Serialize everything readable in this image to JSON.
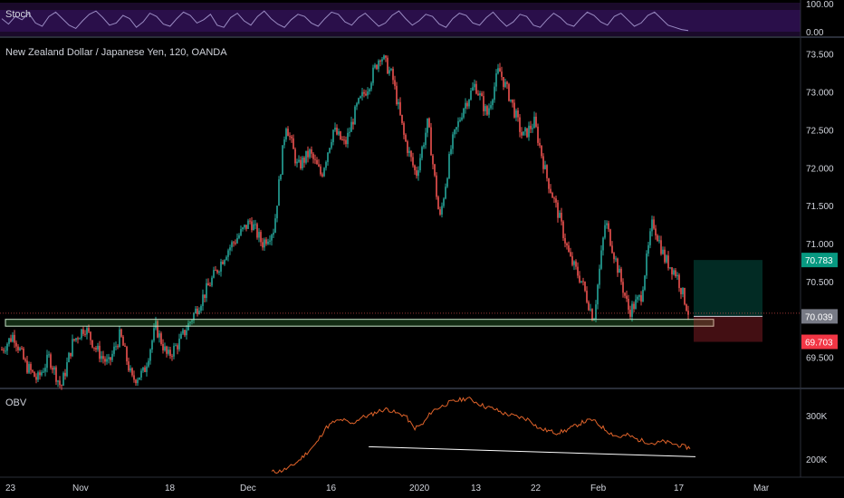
{
  "chart_data": [
    {
      "type": "line",
      "pane": "stoch",
      "title": "Stoch",
      "y_ticks": [
        "100.00",
        "0.00"
      ],
      "ylim": [
        0,
        100
      ],
      "series": [
        {
          "values": [
            60,
            35,
            70,
            55,
            85,
            40,
            25,
            70,
            90,
            60,
            30,
            15,
            50,
            80,
            95,
            65,
            30,
            40,
            75,
            60,
            20,
            45,
            85,
            70,
            35,
            25,
            60,
            90,
            75,
            40,
            55,
            80,
            30,
            20,
            65,
            85,
            50,
            30,
            70,
            95,
            60,
            35,
            20,
            55,
            80,
            70,
            40,
            25,
            60,
            90,
            80,
            45,
            30,
            65,
            85,
            55,
            25,
            40,
            75,
            95,
            60,
            30,
            50,
            80,
            70,
            35,
            20,
            60,
            85,
            75,
            40,
            30,
            65,
            90,
            55,
            25,
            45,
            80,
            70,
            30,
            20,
            55,
            85,
            65,
            35,
            25,
            60,
            90,
            75,
            45,
            30,
            70,
            85,
            55,
            25,
            40,
            75,
            90,
            60,
            30,
            20,
            10,
            5
          ]
        }
      ]
    },
    {
      "type": "candlestick",
      "pane": "price",
      "title": "New Zealand Dollar / Japanese Yen, 120, OANDA",
      "y_ticks": [
        "73.500",
        "73.000",
        "72.500",
        "72.000",
        "71.500",
        "71.000",
        "70.500",
        "69.500"
      ],
      "ylim": [
        69.1,
        73.7
      ],
      "price_tags": [
        {
          "label": "70.783",
          "value": 70.783,
          "color": "#089981"
        },
        {
          "label": "70.039",
          "value": 70.039,
          "color": "#787b86"
        },
        {
          "label": "69.703",
          "value": 69.703,
          "color": "#f23645"
        }
      ],
      "close_path": [
        [
          0,
          69.6
        ],
        [
          2,
          69.8
        ],
        [
          4,
          69.4
        ],
        [
          6,
          69.2
        ],
        [
          8,
          69.5
        ],
        [
          10,
          69.1
        ],
        [
          12,
          69.7
        ],
        [
          14,
          69.9
        ],
        [
          16,
          69.6
        ],
        [
          18,
          69.4
        ],
        [
          20,
          69.8
        ],
        [
          22,
          69.2
        ],
        [
          24,
          69.3
        ],
        [
          26,
          69.9
        ],
        [
          28,
          69.5
        ],
        [
          30,
          69.7
        ],
        [
          32,
          70.0
        ],
        [
          34,
          70.3
        ],
        [
          36,
          70.6
        ],
        [
          38,
          70.9
        ],
        [
          40,
          71.1
        ],
        [
          42,
          71.3
        ],
        [
          44,
          71.0
        ],
        [
          46,
          71.2
        ],
        [
          48,
          72.6
        ],
        [
          50,
          72.0
        ],
        [
          52,
          72.2
        ],
        [
          54,
          71.9
        ],
        [
          56,
          72.5
        ],
        [
          58,
          72.3
        ],
        [
          60,
          72.8
        ],
        [
          62,
          73.1
        ],
        [
          64,
          73.5
        ],
        [
          66,
          73.2
        ],
        [
          68,
          72.4
        ],
        [
          70,
          71.9
        ],
        [
          72,
          72.6
        ],
        [
          74,
          71.3
        ],
        [
          76,
          72.3
        ],
        [
          78,
          72.8
        ],
        [
          80,
          73.1
        ],
        [
          82,
          72.7
        ],
        [
          84,
          73.3
        ],
        [
          86,
          72.9
        ],
        [
          88,
          72.4
        ],
        [
          90,
          72.6
        ],
        [
          92,
          71.9
        ],
        [
          94,
          71.4
        ],
        [
          96,
          70.8
        ],
        [
          98,
          70.5
        ],
        [
          100,
          70.0
        ],
        [
          102,
          71.3
        ],
        [
          104,
          70.7
        ],
        [
          106,
          70.1
        ],
        [
          108,
          70.3
        ],
        [
          110,
          71.3
        ],
        [
          112,
          70.8
        ],
        [
          114,
          70.6
        ],
        [
          116,
          70.1
        ]
      ],
      "zones": [
        {
          "kind": "support",
          "from": 70.0,
          "to": 69.91
        },
        {
          "kind": "target",
          "from": 70.783,
          "to": 70.039
        },
        {
          "kind": "stop",
          "from": 70.039,
          "to": 69.703
        }
      ]
    },
    {
      "type": "line",
      "pane": "obv",
      "title": "OBV",
      "y_ticks": [
        "300K",
        "200K"
      ],
      "ylim": [
        160,
        360
      ],
      "series": [
        {
          "values": [
            170,
            172,
            180,
            195,
            215,
            235,
            270,
            285,
            290,
            280,
            295,
            300,
            310,
            315,
            305,
            300,
            270,
            280,
            310,
            320,
            330,
            335,
            340,
            330,
            320,
            315,
            305,
            300,
            295,
            290,
            270,
            265,
            260,
            265,
            275,
            285,
            290,
            275,
            260,
            250,
            255,
            245,
            240,
            235,
            240,
            235,
            230,
            225
          ]
        }
      ],
      "trend_line": [
        [
          62,
          228
        ],
        [
          116,
          205
        ]
      ]
    }
  ],
  "x_tick_labels": [
    "23",
    "Nov",
    "18",
    "Dec",
    "16",
    "2020",
    "13",
    "22",
    "Feb",
    "17",
    "Mar"
  ]
}
